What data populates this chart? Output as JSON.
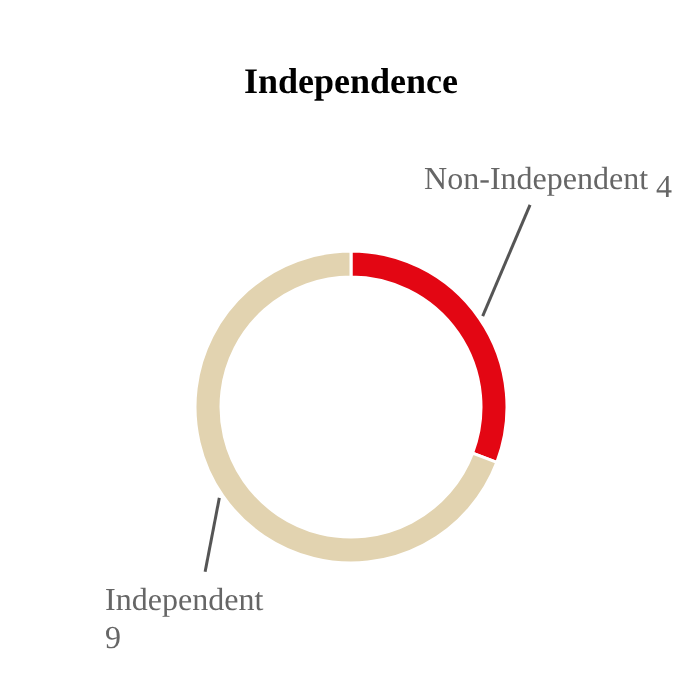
{
  "chart_data": {
    "type": "donut",
    "title": "Independence",
    "categories": [
      "Non-Independent",
      "Independent"
    ],
    "values": [
      4,
      9
    ],
    "data_labels": true,
    "colors": [
      "#e30613",
      "#e2d3b0"
    ]
  }
}
